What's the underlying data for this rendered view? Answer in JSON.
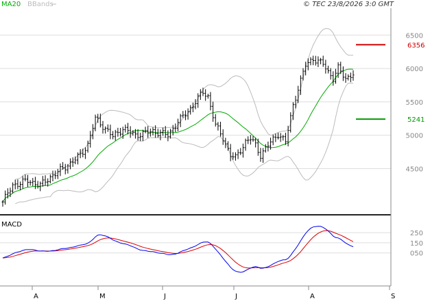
{
  "chart_data": {
    "type": "line",
    "legend": [
      "MA20",
      "BBands"
    ],
    "copyright": "© TEC 23/8/2026 3:0 GMT",
    "months": [
      "A",
      "M",
      "J",
      "J",
      "A",
      "S"
    ],
    "price": {
      "yticks": [
        "6500",
        "6000",
        "5500",
        "5000",
        "4500"
      ],
      "ytick_values": [
        6500,
        6000,
        5500,
        5000,
        4500
      ],
      "ylim": [
        3900,
        6800
      ],
      "grid": true,
      "levels": [
        {
          "label": "6356",
          "value": 6356,
          "color": "#cc0000"
        },
        {
          "label": "5241",
          "value": 5241,
          "color": "#009900"
        }
      ],
      "close_anchors": [
        [
          0,
          4000
        ],
        [
          4,
          4250
        ],
        [
          10,
          4320
        ],
        [
          15,
          4250
        ],
        [
          20,
          4400
        ],
        [
          26,
          4550
        ],
        [
          31,
          4700
        ],
        [
          34,
          4860
        ],
        [
          37,
          5250
        ],
        [
          41,
          5100
        ],
        [
          44,
          4980
        ],
        [
          48,
          5100
        ],
        [
          53,
          5000
        ],
        [
          60,
          5060
        ],
        [
          66,
          5000
        ],
        [
          70,
          5200
        ],
        [
          75,
          5400
        ],
        [
          80,
          5650
        ],
        [
          82,
          5580
        ],
        [
          85,
          5150
        ],
        [
          88,
          4960
        ],
        [
          91,
          4700
        ],
        [
          93,
          4660
        ],
        [
          97,
          4900
        ],
        [
          99,
          4950
        ],
        [
          101,
          4850
        ],
        [
          103,
          4700
        ],
        [
          106,
          4850
        ],
        [
          110,
          5020
        ],
        [
          113,
          4900
        ],
        [
          116,
          5450
        ],
        [
          118,
          5700
        ],
        [
          121,
          6050
        ],
        [
          124,
          6150
        ],
        [
          126,
          6100
        ],
        [
          128,
          6070
        ],
        [
          130,
          5950
        ],
        [
          132,
          5850
        ],
        [
          134,
          6000
        ],
        [
          137,
          5850
        ],
        [
          140,
          5920
        ]
      ]
    },
    "macd": {
      "title": "MACD",
      "yticks": [
        "250",
        "150",
        "050"
      ],
      "ytick_values": [
        250,
        150,
        50
      ],
      "ylim": [
        -250,
        400
      ]
    }
  },
  "colors": {
    "candle": "#000000",
    "ma20": "#00aa00",
    "bbands": "#bbbbbb",
    "macd": "#0000ee",
    "signal": "#dd0000",
    "grid": "#dddddd",
    "axis": "#888888"
  }
}
